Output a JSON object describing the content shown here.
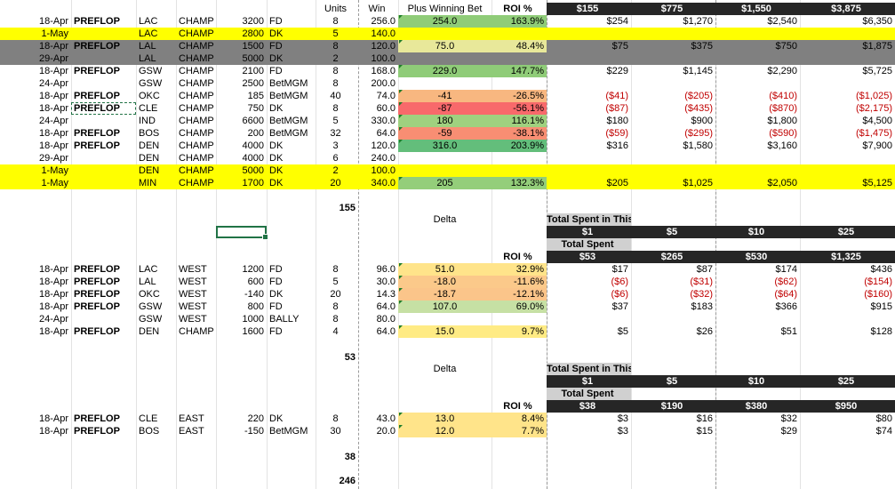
{
  "header": {
    "units": "Units",
    "win": "Win",
    "plus_winning_bet": "Plus Winning Bet",
    "roi": "ROI %",
    "unit_totals": [
      "$155",
      "$775",
      "$1,550",
      "$3,875"
    ]
  },
  "colors": {
    "yellow": "#ffff00",
    "gray_band": "#808080",
    "green_light": "#c6e0a4",
    "green": "#8fcc78",
    "yellow_light": "#ffeb84",
    "orange": "#f8b780",
    "red": "#f8696b",
    "red_orange": "#f88e73"
  },
  "section1": {
    "rows": [
      {
        "date": "18-Apr",
        "tag": "PREFLOP",
        "team": "LAC",
        "type": "CHAMP",
        "odds": "3200",
        "book": "FD",
        "units": "8",
        "win": "256.0",
        "plus": "254.0",
        "roi": "163.9%",
        "vals": [
          "$254",
          "$1,270",
          "$2,540",
          "$6,350"
        ],
        "neg": false,
        "bg": "",
        "plus_bg": "#8fcc78",
        "roi_bg": "#8fcc78"
      },
      {
        "date": "1-May",
        "tag": "",
        "team": "LAC",
        "type": "CHAMP",
        "odds": "2800",
        "book": "DK",
        "units": "5",
        "win": "140.0",
        "plus": "",
        "roi": "",
        "vals": [
          "",
          "",
          "",
          ""
        ],
        "neg": false,
        "bg": "#ffff00",
        "plus_bg": "",
        "roi_bg": ""
      },
      {
        "date": "18-Apr",
        "tag": "PREFLOP",
        "team": "LAL",
        "type": "CHAMP",
        "odds": "1500",
        "book": "FD",
        "units": "8",
        "win": "120.0",
        "plus": "75.0",
        "roi": "48.4%",
        "vals": [
          "$75",
          "$375",
          "$750",
          "$1,875"
        ],
        "neg": false,
        "bg": "#808080",
        "plus_bg": "#e8e89a",
        "roi_bg": "#e8e89a"
      },
      {
        "date": "29-Apr",
        "tag": "",
        "team": "LAL",
        "type": "CHAMP",
        "odds": "5000",
        "book": "DK",
        "units": "2",
        "win": "100.0",
        "plus": "",
        "roi": "",
        "vals": [
          "",
          "",
          "",
          ""
        ],
        "neg": false,
        "bg": "#808080",
        "plus_bg": "",
        "roi_bg": ""
      },
      {
        "date": "18-Apr",
        "tag": "PREFLOP",
        "team": "GSW",
        "type": "CHAMP",
        "odds": "2100",
        "book": "FD",
        "units": "8",
        "win": "168.0",
        "plus": "229.0",
        "roi": "147.7%",
        "vals": [
          "$229",
          "$1,145",
          "$2,290",
          "$5,725"
        ],
        "neg": false,
        "bg": "",
        "plus_bg": "#8fcc78",
        "roi_bg": "#8fcc78"
      },
      {
        "date": "24-Apr",
        "tag": "",
        "team": "GSW",
        "type": "CHAMP",
        "odds": "2500",
        "book": "BetMGM",
        "units": "8",
        "win": "200.0",
        "plus": "",
        "roi": "",
        "vals": [
          "",
          "",
          "",
          ""
        ],
        "neg": false,
        "bg": "",
        "plus_bg": "",
        "roi_bg": ""
      },
      {
        "date": "18-Apr",
        "tag": "PREFLOP",
        "team": "OKC",
        "type": "CHAMP",
        "odds": "185",
        "book": "BetMGM",
        "units": "40",
        "win": "74.0",
        "plus": "-41",
        "roi": "-26.5%",
        "vals": [
          "($41)",
          "($205)",
          "($410)",
          "($1,025)"
        ],
        "neg": true,
        "bg": "",
        "plus_bg": "#f8b780",
        "roi_bg": "#f8b780"
      },
      {
        "date": "18-Apr",
        "tag": "PREFLOP",
        "team": "CLE",
        "type": "CHAMP",
        "odds": "750",
        "book": "DK",
        "units": "8",
        "win": "60.0",
        "plus": "-87",
        "roi": "-56.1%",
        "vals": [
          "($87)",
          "($435)",
          "($870)",
          "($2,175)"
        ],
        "neg": true,
        "bg": "",
        "plus_bg": "#f8696b",
        "roi_bg": "#f8696b"
      },
      {
        "date": "24-Apr",
        "tag": "",
        "team": "IND",
        "type": "CHAMP",
        "odds": "6600",
        "book": "BetMGM",
        "units": "5",
        "win": "330.0",
        "plus": "180",
        "roi": "116.1%",
        "vals": [
          "$180",
          "$900",
          "$1,800",
          "$4,500"
        ],
        "neg": false,
        "bg": "",
        "plus_bg": "#9fd17f",
        "roi_bg": "#9fd17f"
      },
      {
        "date": "18-Apr",
        "tag": "PREFLOP",
        "team": "BOS",
        "type": "CHAMP",
        "odds": "200",
        "book": "BetMGM",
        "units": "32",
        "win": "64.0",
        "plus": "-59",
        "roi": "-38.1%",
        "vals": [
          "($59)",
          "($295)",
          "($590)",
          "($1,475)"
        ],
        "neg": true,
        "bg": "",
        "plus_bg": "#f88e73",
        "roi_bg": "#f88e73"
      },
      {
        "date": "18-Apr",
        "tag": "PREFLOP",
        "team": "DEN",
        "type": "CHAMP",
        "odds": "4000",
        "book": "DK",
        "units": "3",
        "win": "120.0",
        "plus": "316.0",
        "roi": "203.9%",
        "vals": [
          "$316",
          "$1,580",
          "$3,160",
          "$7,900"
        ],
        "neg": false,
        "bg": "",
        "plus_bg": "#63be7b",
        "roi_bg": "#63be7b"
      },
      {
        "date": "29-Apr",
        "tag": "",
        "team": "DEN",
        "type": "CHAMP",
        "odds": "4000",
        "book": "DK",
        "units": "6",
        "win": "240.0",
        "plus": "",
        "roi": "",
        "vals": [
          "",
          "",
          "",
          ""
        ],
        "neg": false,
        "bg": "",
        "plus_bg": "",
        "roi_bg": ""
      },
      {
        "date": "1-May",
        "tag": "",
        "team": "DEN",
        "type": "CHAMP",
        "odds": "5000",
        "book": "DK",
        "units": "2",
        "win": "100.0",
        "plus": "",
        "roi": "",
        "vals": [
          "",
          "",
          "",
          ""
        ],
        "neg": false,
        "bg": "#ffff00",
        "plus_bg": "",
        "roi_bg": ""
      },
      {
        "date": "1-May",
        "tag": "",
        "team": "MIN",
        "type": "CHAMP",
        "odds": "1700",
        "book": "DK",
        "units": "20",
        "win": "340.0",
        "plus": "205",
        "roi": "132.3%",
        "vals": [
          "$205",
          "$1,025",
          "$2,050",
          "$5,125"
        ],
        "neg": false,
        "bg": "#ffff00",
        "plus_bg": "#94ce7a",
        "roi_bg": "#94ce7a"
      }
    ],
    "total": "155"
  },
  "section2": {
    "delta": "Delta",
    "roi": "ROI %",
    "spent_title": "Total Spent in This Section Based on Per-Unit Bets below",
    "per_unit": [
      "$1",
      "$5",
      "$10",
      "$25"
    ],
    "total_spent": "Total Spent",
    "spent": [
      "$53",
      "$265",
      "$530",
      "$1,325"
    ],
    "rows": [
      {
        "date": "18-Apr",
        "tag": "PREFLOP",
        "team": "LAC",
        "type": "WEST",
        "odds": "1200",
        "book": "FD",
        "units": "8",
        "win": "96.0",
        "plus": "51.0",
        "roi": "32.9%",
        "vals": [
          "$17",
          "$87",
          "$174",
          "$436"
        ],
        "neg": false,
        "plus_bg": "#ffe48a",
        "roi_bg": "#ffe48a"
      },
      {
        "date": "18-Apr",
        "tag": "PREFLOP",
        "team": "LAL",
        "type": "WEST",
        "odds": "600",
        "book": "FD",
        "units": "5",
        "win": "30.0",
        "plus": "-18.0",
        "roi": "-11.6%",
        "vals": [
          "($6)",
          "($31)",
          "($62)",
          "($154)"
        ],
        "neg": true,
        "plus_bg": "#fbc98a",
        "roi_bg": "#fbc98a"
      },
      {
        "date": "18-Apr",
        "tag": "PREFLOP",
        "team": "OKC",
        "type": "WEST",
        "odds": "-140",
        "book": "DK",
        "units": "20",
        "win": "14.3",
        "plus": "-18.7",
        "roi": "-12.1%",
        "vals": [
          "($6)",
          "($32)",
          "($64)",
          "($160)"
        ],
        "neg": true,
        "plus_bg": "#fbc58a",
        "roi_bg": "#fbc58a"
      },
      {
        "date": "18-Apr",
        "tag": "PREFLOP",
        "team": "GSW",
        "type": "WEST",
        "odds": "800",
        "book": "FD",
        "units": "8",
        "win": "64.0",
        "plus": "107.0",
        "roi": "69.0%",
        "vals": [
          "$37",
          "$183",
          "$366",
          "$915"
        ],
        "neg": false,
        "plus_bg": "#c6e0a4",
        "roi_bg": "#c6e0a4"
      },
      {
        "date": "24-Apr",
        "tag": "",
        "team": "GSW",
        "type": "WEST",
        "odds": "1000",
        "book": "BALLY",
        "units": "8",
        "win": "80.0",
        "plus": "",
        "roi": "",
        "vals": [
          "",
          "",
          "",
          ""
        ],
        "neg": false,
        "plus_bg": "",
        "roi_bg": ""
      },
      {
        "date": "18-Apr",
        "tag": "PREFLOP",
        "team": "DEN",
        "type": "CHAMP",
        "odds": "1600",
        "book": "FD",
        "units": "4",
        "win": "64.0",
        "plus": "15.0",
        "roi": "9.7%",
        "vals": [
          "$5",
          "$26",
          "$51",
          "$128"
        ],
        "neg": false,
        "plus_bg": "#ffeb84",
        "roi_bg": "#ffeb84"
      }
    ],
    "total": "53"
  },
  "section3": {
    "delta": "Delta",
    "roi": "ROI %",
    "spent_title": "Total Spent in This Section Based on Per-Unit Bets below",
    "per_unit": [
      "$1",
      "$5",
      "$10",
      "$25"
    ],
    "total_spent": "Total Spent",
    "spent": [
      "$38",
      "$190",
      "$380",
      "$950"
    ],
    "rows": [
      {
        "date": "18-Apr",
        "tag": "PREFLOP",
        "team": "CLE",
        "type": "EAST",
        "odds": "220",
        "book": "DK",
        "units": "8",
        "win": "43.0",
        "plus": "13.0",
        "roi": "8.4%",
        "vals": [
          "$3",
          "$16",
          "$32",
          "$80"
        ],
        "neg": false,
        "plus_bg": "#ffe48a",
        "roi_bg": "#ffe48a"
      },
      {
        "date": "18-Apr",
        "tag": "PREFLOP",
        "team": "BOS",
        "type": "EAST",
        "odds": "-150",
        "book": "BetMGM",
        "units": "30",
        "win": "20.0",
        "plus": "12.0",
        "roi": "7.7%",
        "vals": [
          "$3",
          "$15",
          "$29",
          "$74"
        ],
        "neg": false,
        "plus_bg": "#ffe48a",
        "roi_bg": "#ffe48a"
      }
    ],
    "total": "38"
  },
  "grand_total": "246"
}
